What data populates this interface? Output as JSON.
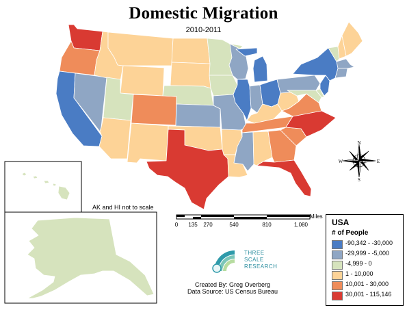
{
  "title": "Domestic Migration",
  "subtitle": "2010-2011",
  "inset_note": "AK and HI not to scale",
  "scale_bar": {
    "ticks": [
      "0",
      "135",
      "270",
      "540",
      "810",
      "1,080"
    ],
    "unit": "Miles"
  },
  "legend": {
    "title": "USA",
    "subtitle": "# of People",
    "items": [
      {
        "label": "-90,342 - -30,000",
        "color": "#4a7cc4"
      },
      {
        "label": "-29,999 - -5,000",
        "color": "#8fa6c4"
      },
      {
        "label": "-4,999 - 0",
        "color": "#d6e3bd"
      },
      {
        "label": "1 - 10,000",
        "color": "#fdd397"
      },
      {
        "label": "10,001 - 30,000",
        "color": "#ef8c5a"
      },
      {
        "label": "30,001 - 115,146",
        "color": "#d93a32"
      }
    ]
  },
  "compass": {
    "n": "N",
    "e": "E",
    "s": "S",
    "w": "W"
  },
  "brand": {
    "line1": "THREE",
    "line2": "SCALE",
    "line3": "RESEARCH"
  },
  "credit": {
    "created_by": "Created By: Greg Overberg",
    "source": "Data Source: US Census Bureau"
  },
  "states": {
    "WA": 5,
    "OR": 4,
    "CA": 0,
    "NV": 1,
    "ID": 3,
    "MT": 3,
    "WY": 3,
    "UT": 2,
    "AZ": 3,
    "CO": 4,
    "NM": 3,
    "ND": 3,
    "SD": 3,
    "NE": 2,
    "KS": 1,
    "OK": 3,
    "TX": 5,
    "MN": 2,
    "IA": 2,
    "MO": 1,
    "AR": 3,
    "LA": 3,
    "WI": 1,
    "IL": 0,
    "MI": 0,
    "IN": 1,
    "OH": 0,
    "KY": 3,
    "TN": 4,
    "MS": 1,
    "AL": 3,
    "GA": 4,
    "FL": 5,
    "SC": 4,
    "NC": 5,
    "VA": 4,
    "WV": 3,
    "PA": 1,
    "NY": 0,
    "NJ": 0,
    "MD": 2,
    "DE": 2,
    "VT": 2,
    "NH": 3,
    "ME": 3,
    "MA": 1,
    "CT": 1,
    "AK": 2,
    "HI": 2
  }
}
